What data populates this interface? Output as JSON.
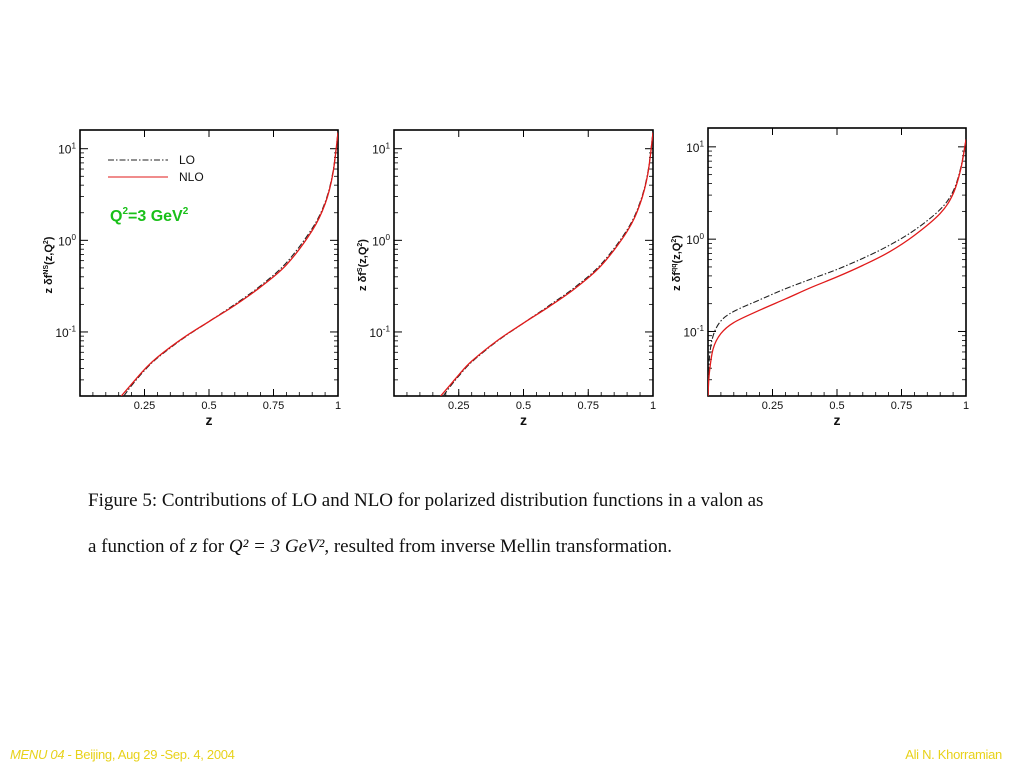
{
  "chart_data": [
    {
      "type": "line",
      "ylabel": "z δf NS(z,Q2)",
      "xlabel": "z",
      "x_ticks": [
        "0.25",
        "0.5",
        "0.75",
        "1"
      ],
      "y_ticks": [
        "10^-1",
        "10^0",
        "10^1"
      ],
      "y_scale": "log",
      "xlim": [
        0,
        1
      ],
      "ylim": [
        0.02,
        16
      ],
      "legend": {
        "position": "top-left",
        "entries": [
          "LO",
          "NLO"
        ]
      },
      "annotation": "Q2=3 GeV2",
      "series": [
        {
          "name": "LO",
          "style": "dash-dot",
          "color": "#222222",
          "x": [
            0.17,
            0.2,
            0.25,
            0.3,
            0.4,
            0.5,
            0.6,
            0.7,
            0.8,
            0.9,
            0.95,
            0.98,
            1.0
          ],
          "y": [
            0.02,
            0.026,
            0.038,
            0.052,
            0.085,
            0.13,
            0.2,
            0.32,
            0.57,
            1.35,
            2.6,
            5.5,
            15
          ]
        },
        {
          "name": "NLO",
          "style": "solid",
          "color": "#e01a1a",
          "x": [
            0.16,
            0.2,
            0.25,
            0.3,
            0.4,
            0.5,
            0.6,
            0.7,
            0.8,
            0.9,
            0.95,
            0.98,
            1.0
          ],
          "y": [
            0.02,
            0.027,
            0.039,
            0.053,
            0.086,
            0.13,
            0.195,
            0.31,
            0.54,
            1.28,
            2.5,
            5.3,
            15
          ]
        }
      ]
    },
    {
      "type": "line",
      "ylabel": "z δf S(z,Q2)",
      "xlabel": "z",
      "x_ticks": [
        "0.25",
        "0.5",
        "0.75",
        "1"
      ],
      "y_ticks": [
        "10^-1",
        "10^0",
        "10^1"
      ],
      "y_scale": "log",
      "xlim": [
        0,
        1
      ],
      "ylim": [
        0.02,
        16
      ],
      "series": [
        {
          "name": "LO",
          "style": "dash-dot",
          "color": "#222222",
          "x": [
            0.19,
            0.22,
            0.25,
            0.3,
            0.4,
            0.5,
            0.6,
            0.7,
            0.8,
            0.9,
            0.95,
            0.98,
            1.0
          ],
          "y": [
            0.02,
            0.026,
            0.033,
            0.047,
            0.08,
            0.125,
            0.195,
            0.31,
            0.55,
            1.3,
            2.6,
            5.5,
            15
          ]
        },
        {
          "name": "NLO",
          "style": "solid",
          "color": "#e01a1a",
          "x": [
            0.18,
            0.22,
            0.25,
            0.3,
            0.4,
            0.5,
            0.6,
            0.7,
            0.8,
            0.9,
            0.95,
            0.98,
            1.0
          ],
          "y": [
            0.02,
            0.027,
            0.034,
            0.048,
            0.081,
            0.125,
            0.19,
            0.3,
            0.53,
            1.25,
            2.5,
            5.3,
            15
          ]
        }
      ]
    },
    {
      "type": "line",
      "ylabel": "z δf qq(z,Q2)",
      "xlabel": "z",
      "x_ticks": [
        "0.25",
        "0.5",
        "0.75",
        "1"
      ],
      "y_ticks": [
        "10^-1",
        "10^0",
        "10^1"
      ],
      "y_scale": "log",
      "xlim": [
        0,
        1
      ],
      "ylim": [
        0.02,
        16
      ],
      "series": [
        {
          "name": "LO",
          "style": "dash-dot",
          "color": "#222222",
          "x": [
            0.0,
            0.005,
            0.02,
            0.05,
            0.1,
            0.2,
            0.3,
            0.4,
            0.5,
            0.6,
            0.7,
            0.8,
            0.9,
            0.95,
            0.98,
            1.0
          ],
          "y": [
            0.02,
            0.05,
            0.09,
            0.13,
            0.165,
            0.22,
            0.29,
            0.37,
            0.47,
            0.62,
            0.85,
            1.25,
            2.1,
            3.3,
            6.0,
            12
          ]
        },
        {
          "name": "NLO",
          "style": "solid",
          "color": "#e01a1a",
          "x": [
            0.0,
            0.005,
            0.02,
            0.05,
            0.1,
            0.2,
            0.3,
            0.4,
            0.5,
            0.6,
            0.7,
            0.8,
            0.9,
            0.95,
            0.98,
            1.0
          ],
          "y": [
            0.02,
            0.035,
            0.065,
            0.095,
            0.125,
            0.17,
            0.225,
            0.3,
            0.39,
            0.52,
            0.72,
            1.1,
            1.9,
            3.1,
            5.8,
            12
          ]
        }
      ]
    }
  ],
  "caption": {
    "line1": "Figure 5: Contributions of LO and NLO for polarized distribution functions in a valon as",
    "line2_a": "a function of ",
    "line2_var": "z",
    "line2_b": " for ",
    "line2_math": "Q² = 3 GeV²",
    "line2_c": ", resulted from inverse Mellin transformation."
  },
  "footer": {
    "conference": "MENU 04",
    "details": " - Beijing, Aug 29 -Sep. 4, 2004",
    "author": "Ali N. Khorramian"
  },
  "colors": {
    "nlo": "#e01a1a",
    "lo": "#222222",
    "annotation": "#19c019",
    "footer": "#e8d21a"
  }
}
